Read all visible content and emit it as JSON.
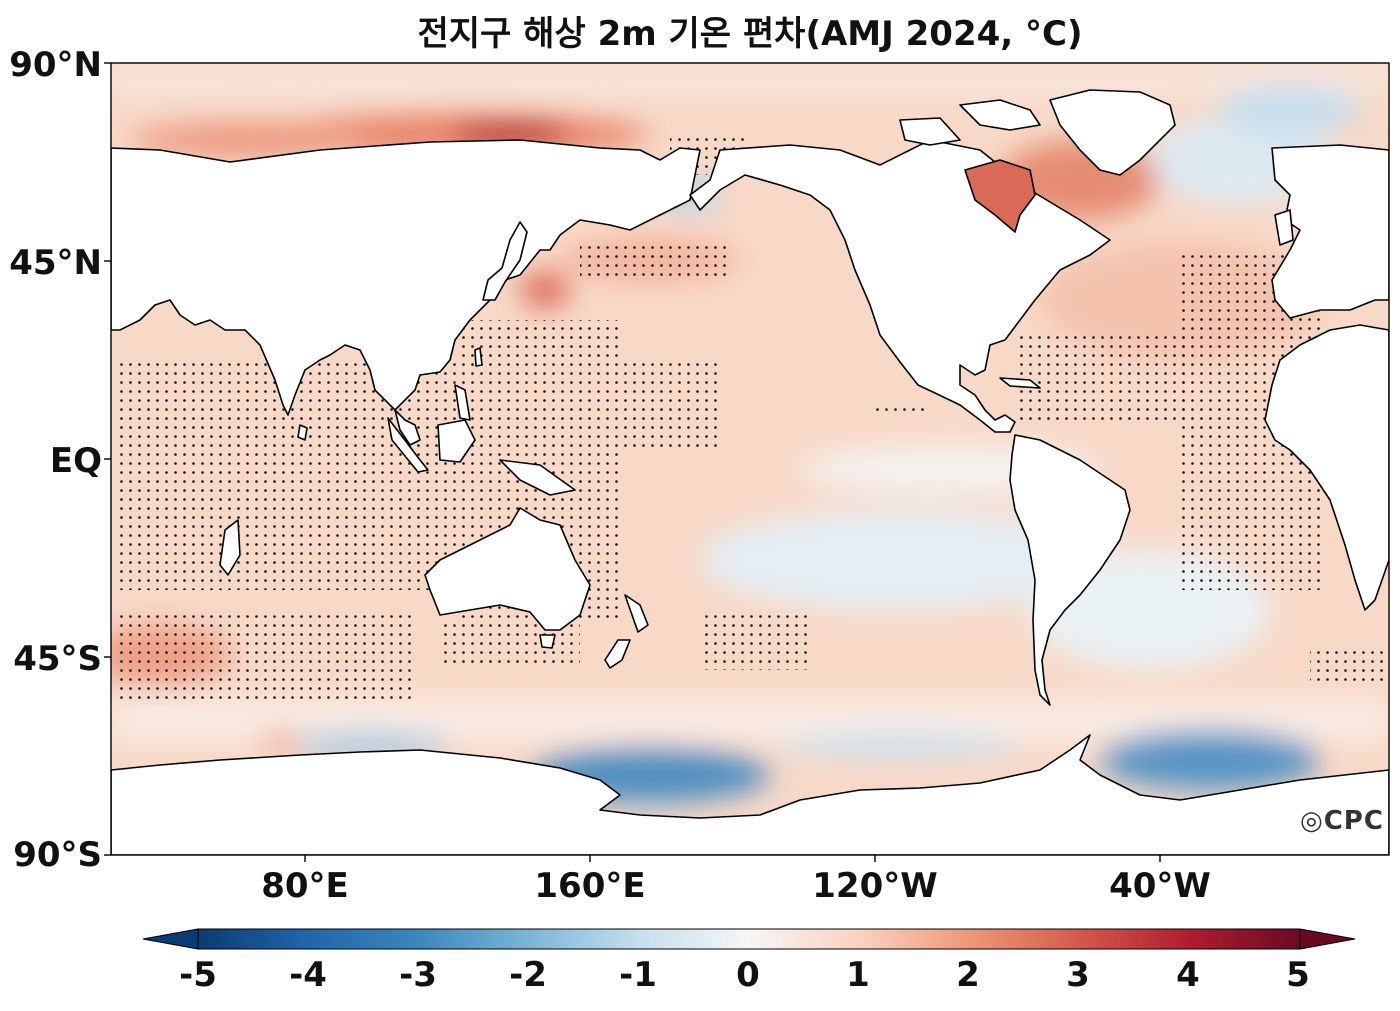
{
  "title": "전지구 해상 2m 기온 편차(AMJ 2024, °C)",
  "lat_labels": [
    "90°N",
    "45°N",
    "EQ",
    "45°S",
    "90°S"
  ],
  "lon_labels": [
    "80°E",
    "160°E",
    "120°W",
    "40°W"
  ],
  "colorbar": {
    "ticks": [
      "-5",
      "-4",
      "-3",
      "-2",
      "-1",
      "0",
      "1",
      "2",
      "3",
      "4",
      "5"
    ],
    "range": [
      -5,
      5
    ],
    "extend": "both",
    "colormap": "RdBu_r",
    "colors": [
      "#053061",
      "#2166ac",
      "#4393c3",
      "#92c5de",
      "#d1e5f0",
      "#f7f7f7",
      "#fddbc7",
      "#f4a582",
      "#d6604d",
      "#b2182b",
      "#67001f"
    ]
  },
  "logo": "CPC",
  "colors": {
    "land": "#ffffff",
    "coast": "#000000",
    "stipple": "#111111"
  }
}
